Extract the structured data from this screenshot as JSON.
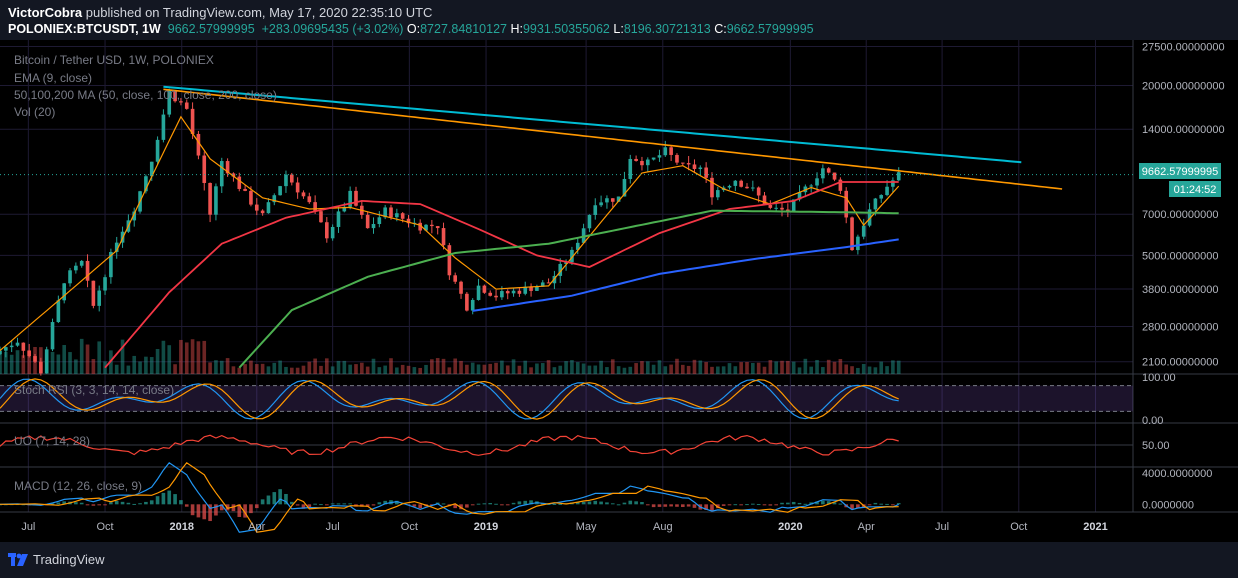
{
  "header": {
    "author": "VictorCobra",
    "published": "published on TradingView.com, May 17, 2020 22:35:10 UTC",
    "symbol": "POLONIEX:BTCUSDT, 1W",
    "last": "9662.57999995",
    "change": "+283.09695435 (+3.02%)",
    "o_key": "O:",
    "o_val": "8727.84810127",
    "h_key": "H:",
    "h_val": "9931.50355062",
    "l_key": "L:",
    "l_val": "8196.30721313",
    "c_key": "C:",
    "c_val": "9662.57999995"
  },
  "legend": {
    "title": "Bitcoin / Tether USD, 1W, POLONIEX",
    "ema": "EMA (9, close)",
    "ma": "50,100,200 MA (50, close, 100, close, 200, close)",
    "vol": "Vol (20)",
    "stoch": "Stoch RSI (3, 3, 14, 14, close)",
    "uo": "UO (7, 14, 28)",
    "macd": "MACD (12, 26, close, 9)"
  },
  "price_badge": "9662.57999995",
  "countdown": "01:24:52",
  "footer": {
    "brand": "TradingView"
  },
  "colors": {
    "up": "#26a69a",
    "down": "#ef5350",
    "ema": "#ff9800",
    "ma50": "#f23645",
    "ma100": "#4caf50",
    "ma200": "#2962ff",
    "trend_top": "#00bcd4",
    "trend_mid": "#ff9800",
    "trend_low": "#2196f3",
    "stoch_k": "#2196f3",
    "stoch_d": "#ff9800",
    "uo": "#f44336"
  },
  "chart_data": {
    "type": "candlestick",
    "price_axis_labels": [
      "27500.00000000",
      "20000.00000000",
      "14000.00000000",
      "7000.00000000",
      "5000.00000000",
      "3800.00000000",
      "2800.00000000",
      "2100.00000000"
    ],
    "price_axis_values": [
      27500,
      20000,
      14000,
      7000,
      5000,
      3800,
      2800,
      2100
    ],
    "time_axis_labels": [
      "Jul",
      "Oct",
      "2018",
      "Apr",
      "Jul",
      "Oct",
      "2019",
      "May",
      "Aug",
      "2020",
      "Apr",
      "Jul",
      "Oct",
      "2021"
    ],
    "time_axis_dates": [
      "2017-07-01",
      "2017-10-01",
      "2018-01-01",
      "2018-04-01",
      "2018-07-01",
      "2018-10-01",
      "2019-01-01",
      "2019-05-01",
      "2019-08-01",
      "2020-01-01",
      "2020-04-01",
      "2020-07-01",
      "2020-10-01",
      "2021-01-01"
    ],
    "time_range": [
      "2017-05-28",
      "2021-02-15"
    ],
    "price_range": [
      1900,
      29000
    ],
    "log_scale": true,
    "series_anchors": [
      [
        "2017-05-28",
        2300
      ],
      [
        "2017-06-18",
        2500
      ],
      [
        "2017-07-16",
        1950
      ],
      [
        "2017-08-13",
        4100
      ],
      [
        "2017-09-03",
        4700
      ],
      [
        "2017-09-17",
        3300
      ],
      [
        "2017-10-15",
        5700
      ],
      [
        "2017-11-05",
        7400
      ],
      [
        "2017-11-26",
        11000
      ],
      [
        "2017-12-17",
        19000
      ],
      [
        "2018-01-07",
        16500
      ],
      [
        "2018-01-21",
        11000
      ],
      [
        "2018-02-04",
        7000
      ],
      [
        "2018-02-18",
        10800
      ],
      [
        "2018-03-18",
        8200
      ],
      [
        "2018-04-08",
        6900
      ],
      [
        "2018-05-06",
        9700
      ],
      [
        "2018-06-03",
        7600
      ],
      [
        "2018-06-24",
        5900
      ],
      [
        "2018-07-22",
        8200
      ],
      [
        "2018-08-12",
        6200
      ],
      [
        "2018-09-02",
        7200
      ],
      [
        "2018-10-14",
        6350
      ],
      [
        "2018-11-04",
        6400
      ],
      [
        "2018-11-18",
        4400
      ],
      [
        "2018-12-09",
        3300
      ],
      [
        "2018-12-23",
        3900
      ],
      [
        "2019-01-13",
        3600
      ],
      [
        "2019-02-17",
        3800
      ],
      [
        "2019-03-17",
        4000
      ],
      [
        "2019-04-14",
        5100
      ],
      [
        "2019-05-12",
        7800
      ],
      [
        "2019-06-09",
        8000
      ],
      [
        "2019-06-23",
        11200
      ],
      [
        "2019-07-14",
        10600
      ],
      [
        "2019-08-04",
        11700
      ],
      [
        "2019-08-25",
        10300
      ],
      [
        "2019-09-15",
        10200
      ],
      [
        "2019-09-29",
        8300
      ],
      [
        "2019-10-27",
        9300
      ],
      [
        "2019-11-17",
        8500
      ],
      [
        "2019-12-08",
        7300
      ],
      [
        "2019-12-29",
        7200
      ],
      [
        "2020-01-19",
        8600
      ],
      [
        "2020-02-09",
        10200
      ],
      [
        "2020-03-01",
        8700
      ],
      [
        "2020-03-15",
        5300
      ],
      [
        "2020-04-05",
        7200
      ],
      [
        "2020-04-26",
        8800
      ],
      [
        "2020-05-10",
        9662
      ]
    ],
    "overlays": [
      {
        "name": "EMA 9",
        "anchors": [
          [
            "2017-05-28",
            2300
          ],
          [
            "2017-08-13",
            3600
          ],
          [
            "2017-10-15",
            5200
          ],
          [
            "2017-12-03",
            10500
          ],
          [
            "2017-12-31",
            15500
          ],
          [
            "2018-02-04",
            11000
          ],
          [
            "2018-04-08",
            8000
          ],
          [
            "2018-06-03",
            7300
          ],
          [
            "2018-07-22",
            7400
          ],
          [
            "2018-10-14",
            6400
          ],
          [
            "2018-11-25",
            4900
          ],
          [
            "2019-01-13",
            3800
          ],
          [
            "2019-03-17",
            3900
          ],
          [
            "2019-05-12",
            6200
          ],
          [
            "2019-07-07",
            9800
          ],
          [
            "2019-08-25",
            10400
          ],
          [
            "2019-10-13",
            8600
          ],
          [
            "2019-12-08",
            7600
          ],
          [
            "2020-01-26",
            8700
          ],
          [
            "2020-03-08",
            8000
          ],
          [
            "2020-03-29",
            6400
          ],
          [
            "2020-05-10",
            8800
          ]
        ]
      },
      {
        "name": "MA 50",
        "anchors": [
          [
            "2017-10-01",
            2000
          ],
          [
            "2017-12-17",
            3700
          ],
          [
            "2018-02-18",
            5500
          ],
          [
            "2018-05-06",
            6800
          ],
          [
            "2018-08-05",
            7800
          ],
          [
            "2018-10-14",
            7600
          ],
          [
            "2018-12-23",
            6200
          ],
          [
            "2019-03-03",
            5000
          ],
          [
            "2019-05-05",
            4550
          ],
          [
            "2019-07-28",
            6000
          ],
          [
            "2019-10-20",
            7300
          ],
          [
            "2020-01-05",
            7800
          ],
          [
            "2020-03-01",
            9100
          ],
          [
            "2020-05-10",
            9100
          ]
        ]
      },
      {
        "name": "MA 100",
        "anchors": [
          [
            "2018-03-11",
            2000
          ],
          [
            "2018-05-13",
            3200
          ],
          [
            "2018-08-12",
            4200
          ],
          [
            "2018-11-25",
            5100
          ],
          [
            "2019-03-17",
            5500
          ],
          [
            "2019-06-23",
            6300
          ],
          [
            "2019-09-29",
            7200
          ],
          [
            "2020-01-05",
            7150
          ],
          [
            "2020-03-22",
            7100
          ],
          [
            "2020-05-10",
            7050
          ]
        ]
      },
      {
        "name": "MA 200",
        "anchors": [
          [
            "2018-12-16",
            3180
          ],
          [
            "2019-04-14",
            3600
          ],
          [
            "2019-07-28",
            4300
          ],
          [
            "2019-11-17",
            4850
          ],
          [
            "2020-03-08",
            5350
          ],
          [
            "2020-05-10",
            5700
          ]
        ]
      },
      {
        "name": "Trend top",
        "anchors": [
          [
            "2017-12-10",
            19800
          ],
          [
            "2020-10-04",
            10700
          ]
        ]
      },
      {
        "name": "Trend mid",
        "anchors": [
          [
            "2017-12-10",
            19400
          ],
          [
            "2020-11-22",
            8600
          ]
        ]
      }
    ],
    "stoch_rsi": {
      "axis_labels": [
        "100.00",
        "0.00"
      ],
      "range": [
        0,
        100
      ]
    },
    "uo": {
      "axis_labels": [
        "50.00"
      ],
      "range": [
        30,
        70
      ]
    },
    "macd": {
      "axis_labels": [
        "4000.0000000",
        "0.0000000"
      ],
      "range": [
        -600,
        4400
      ]
    }
  }
}
